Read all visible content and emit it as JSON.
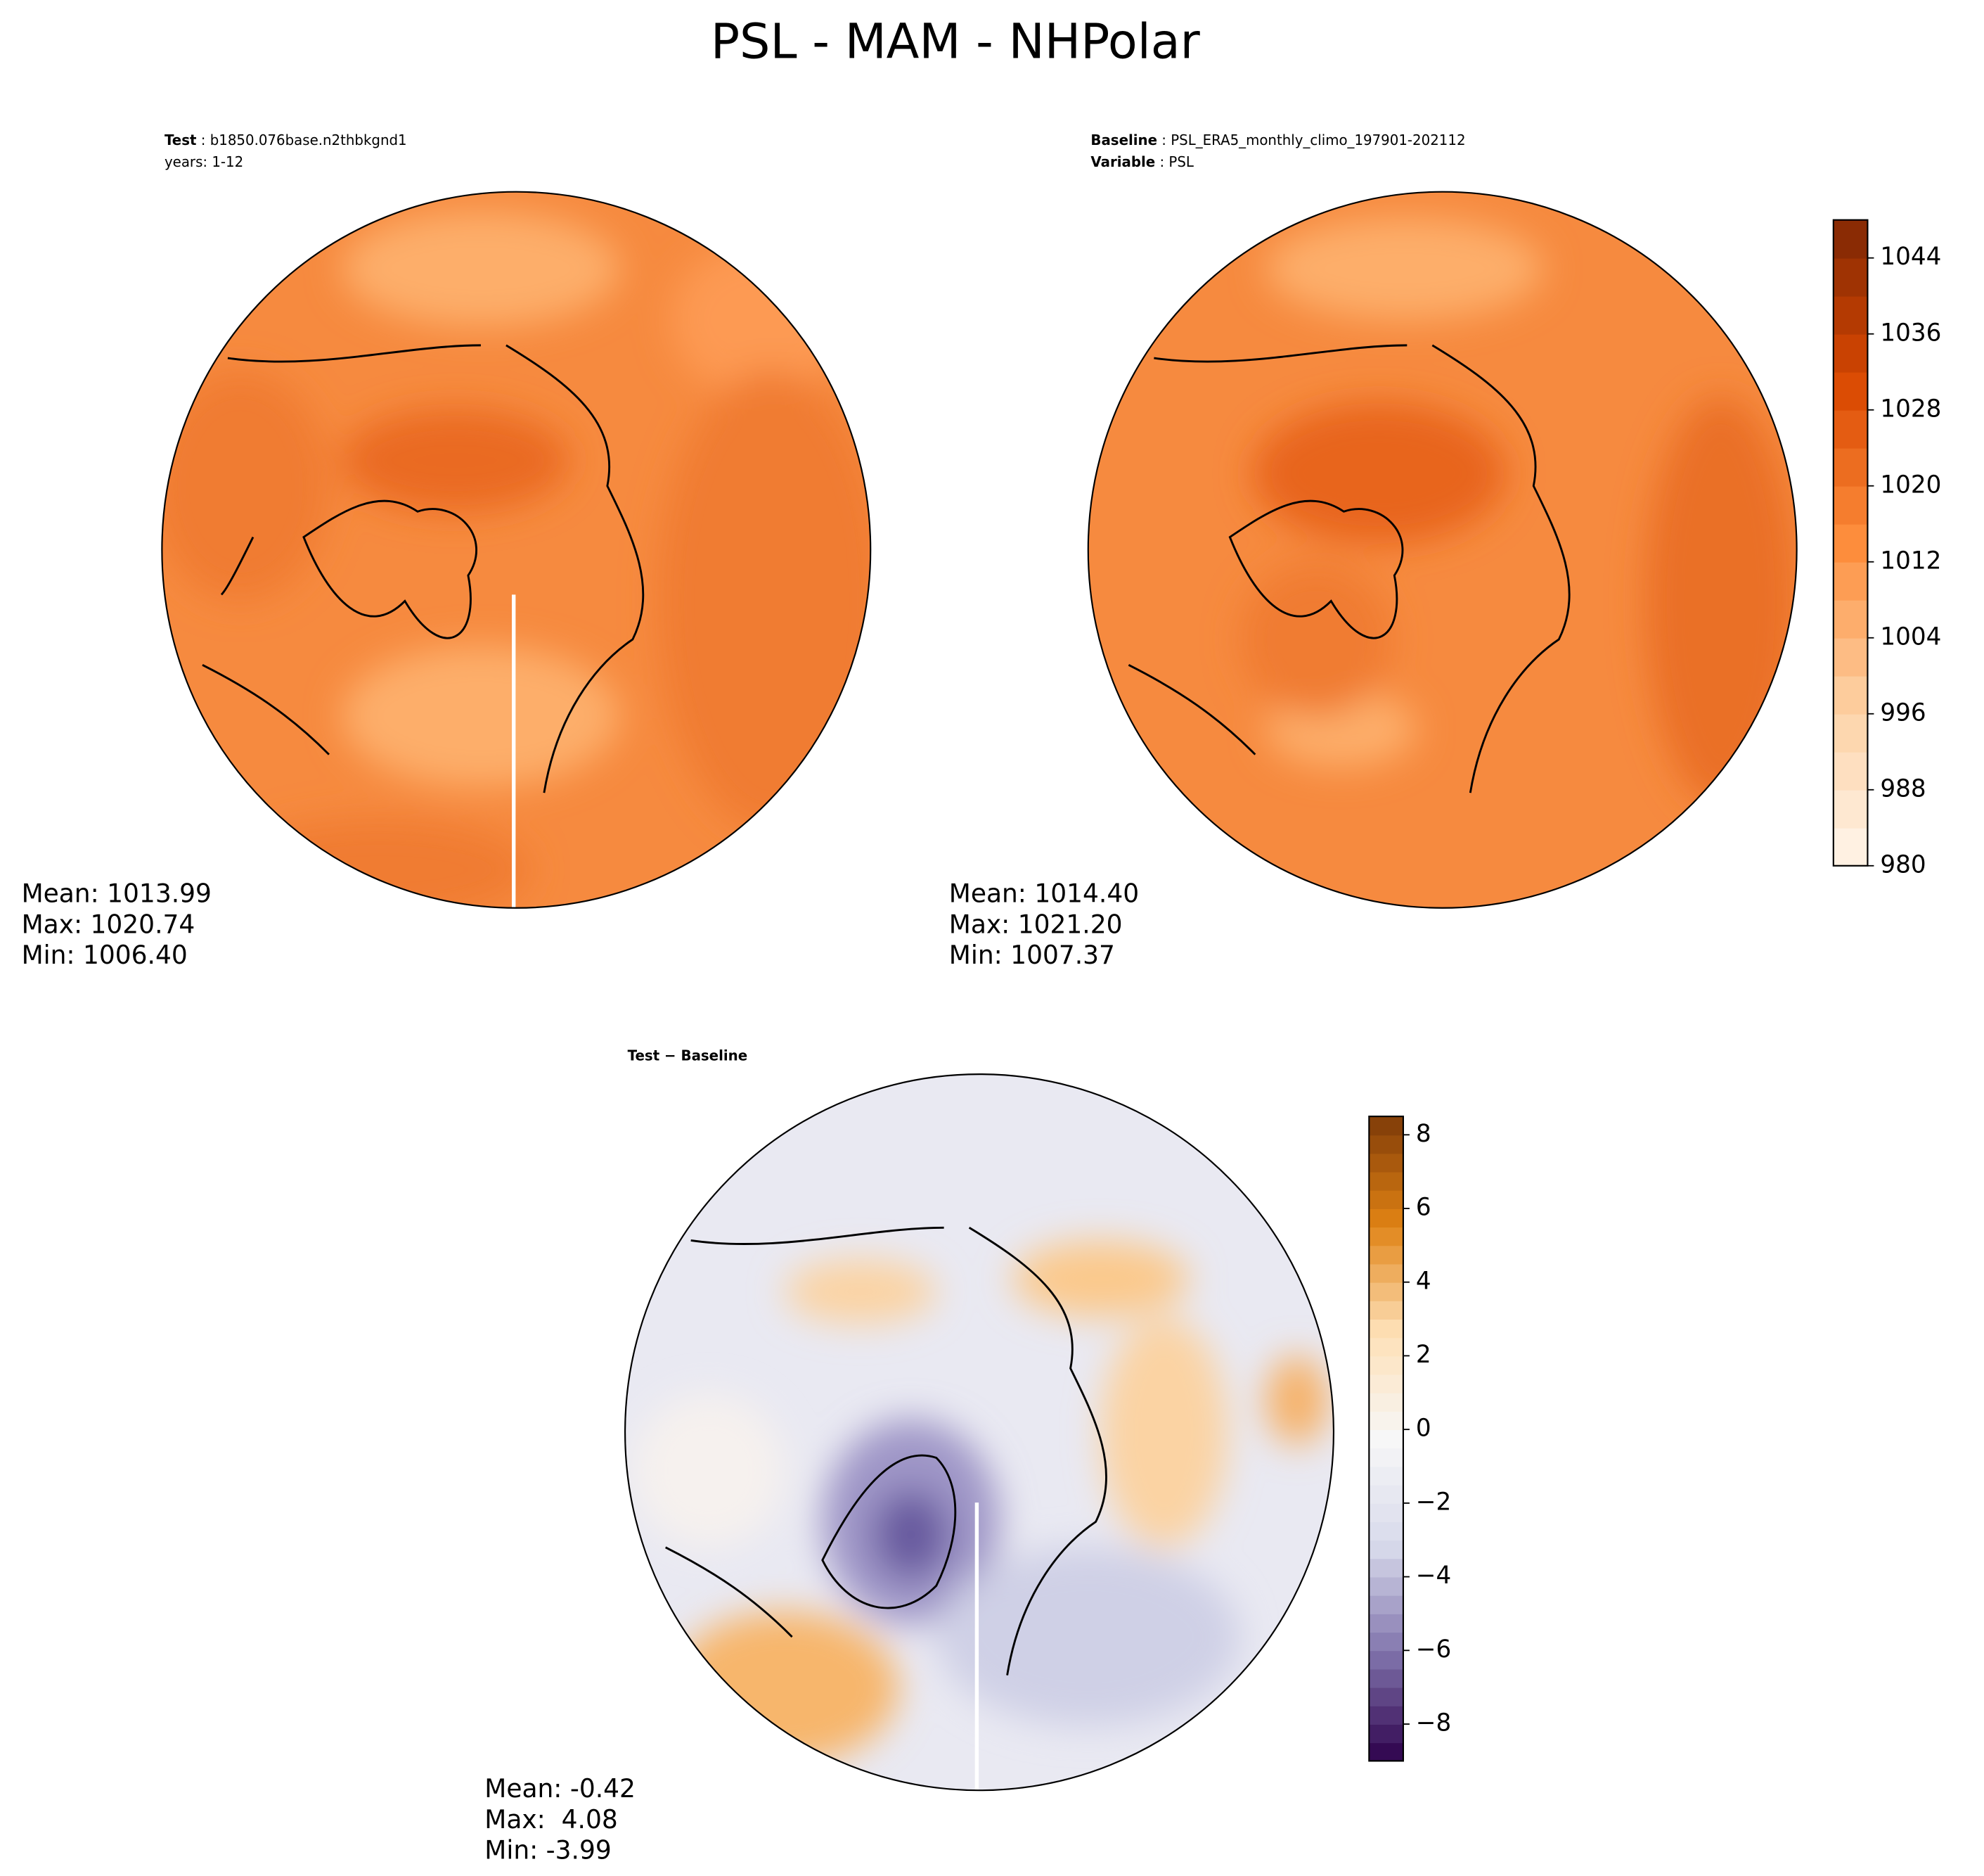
{
  "title": "PSL - MAM - NHPolar",
  "chart_data": [
    {
      "type": "map",
      "annotations": [
        {
          "bold": "Test",
          "text": " : b1850.076base.n2thbkgnd1"
        },
        {
          "text": "years: 1-12"
        }
      ],
      "stats": [
        "Mean: 1013.99",
        "Max: 1020.74",
        "Min: 1006.40"
      ]
    },
    {
      "type": "map",
      "annotations": [
        {
          "bold": "Baseline",
          "text": " : PSL_ERA5_monthly_climo_197901-202112"
        },
        {
          "bold": "Variable",
          "text": " : PSL"
        }
      ],
      "stats": [
        "Mean: 1014.40",
        "Max: 1021.20",
        "Min: 1007.37"
      ],
      "colorbar": {
        "ylim": [
          980,
          1048
        ],
        "yticks": [
          980,
          988,
          996,
          1004,
          1012,
          1020,
          1028,
          1036,
          1044
        ],
        "colors": [
          "#fff5eb",
          "#fdd0a2",
          "#fd8d3c",
          "#d94801",
          "#7f2704"
        ]
      }
    },
    {
      "type": "map",
      "annotations": [
        {
          "bold": "Test − Baseline"
        }
      ],
      "stats": [
        "Mean: -0.42",
        "Max:  4.08",
        "Min: -3.99"
      ],
      "colorbar": {
        "ylim": [
          -9,
          8.5
        ],
        "yticks": [
          {
            "value": -8,
            "label": "−8"
          },
          {
            "value": -6,
            "label": "−6"
          },
          {
            "value": -4,
            "label": "−4"
          },
          {
            "value": -2,
            "label": "−2"
          },
          0,
          2,
          4,
          6,
          8
        ],
        "colors": [
          "#2d004b",
          "#8073ac",
          "#d8daeb",
          "#f7f7f7",
          "#fee0b6",
          "#e08214",
          "#7f3b08"
        ]
      }
    }
  ]
}
